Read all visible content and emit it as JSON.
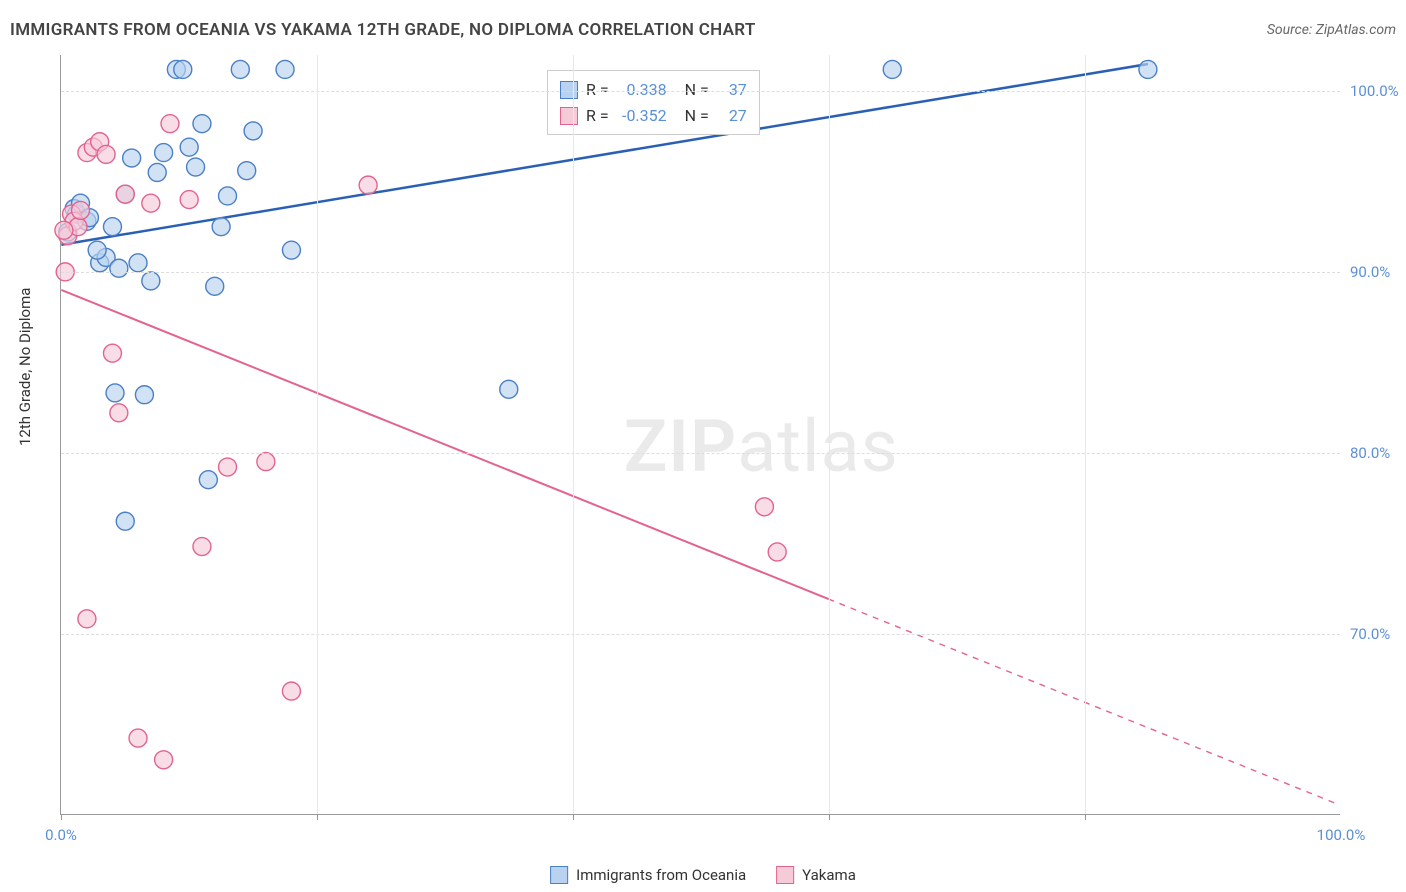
{
  "title": "IMMIGRANTS FROM OCEANIA VS YAKAMA 12TH GRADE, NO DIPLOMA CORRELATION CHART",
  "source": "Source: ZipAtlas.com",
  "watermark": {
    "zip": "ZIP",
    "atlas": "atlas"
  },
  "y_axis_label": "12th Grade, No Diploma",
  "chart": {
    "type": "scatter",
    "background_color": "#ffffff",
    "grid_color": "#dddddd",
    "xlim": [
      0,
      100
    ],
    "ylim": [
      60,
      102
    ],
    "y_ticks": [
      {
        "value": 70,
        "label": "70.0%"
      },
      {
        "value": 80,
        "label": "80.0%"
      },
      {
        "value": 90,
        "label": "90.0%"
      },
      {
        "value": 100,
        "label": "100.0%"
      }
    ],
    "x_tick_marks": [
      0,
      20,
      40,
      60,
      80
    ],
    "x_ticks": [
      {
        "value": 0,
        "label": "0.0%"
      },
      {
        "value": 100,
        "label": "100.0%"
      }
    ],
    "legend_stats": {
      "top_pct": 2,
      "left_pct": 38,
      "rows": [
        {
          "swatch_fill": "#b9d2ef",
          "swatch_border": "#4b7fc6",
          "r_label": "R =",
          "r_value": "0.338",
          "n_label": "N =",
          "n_value": "37"
        },
        {
          "swatch_fill": "#f6cbd8",
          "swatch_border": "#e3638f",
          "r_label": "R =",
          "r_value": "-0.352",
          "n_label": "N =",
          "n_value": "27"
        }
      ]
    },
    "legend_bottom": [
      {
        "swatch_fill": "#b9d2ef",
        "swatch_border": "#4b7fc6",
        "label": "Immigrants from Oceania"
      },
      {
        "swatch_fill": "#f6cbd8",
        "swatch_border": "#e3638f",
        "label": "Yakama"
      }
    ],
    "series": [
      {
        "name": "Immigrants from Oceania",
        "marker_fill": "#b9d2ef",
        "marker_fill_opacity": 0.65,
        "marker_border": "#4b7fc6",
        "marker_radius": 9,
        "line_color": "#2a60b4",
        "line_width": 2.5,
        "regression": {
          "x1": 0,
          "y1": 91.5,
          "x2": 85,
          "y2": 101.5,
          "solid_until": 85
        },
        "points": [
          {
            "x": 0.5,
            "y": 92.2
          },
          {
            "x": 1,
            "y": 93.5
          },
          {
            "x": 1.2,
            "y": 93.2
          },
          {
            "x": 1.5,
            "y": 93.8
          },
          {
            "x": 2,
            "y": 92.8
          },
          {
            "x": 2.2,
            "y": 93.0
          },
          {
            "x": 3,
            "y": 90.5
          },
          {
            "x": 3.5,
            "y": 90.8
          },
          {
            "x": 4,
            "y": 92.5
          },
          {
            "x": 4.5,
            "y": 90.2
          },
          {
            "x": 5,
            "y": 94.3
          },
          {
            "x": 5.5,
            "y": 96.3
          },
          {
            "x": 6,
            "y": 90.5
          },
          {
            "x": 6.5,
            "y": 83.2
          },
          {
            "x": 7,
            "y": 89.5
          },
          {
            "x": 7.5,
            "y": 95.5
          },
          {
            "x": 8,
            "y": 96.6
          },
          {
            "x": 9,
            "y": 101.2
          },
          {
            "x": 9.5,
            "y": 101.2
          },
          {
            "x": 10,
            "y": 96.9
          },
          {
            "x": 10.5,
            "y": 95.8
          },
          {
            "x": 11,
            "y": 98.2
          },
          {
            "x": 11.5,
            "y": 78.5
          },
          {
            "x": 12,
            "y": 89.2
          },
          {
            "x": 12.5,
            "y": 92.5
          },
          {
            "x": 13,
            "y": 94.2
          },
          {
            "x": 14,
            "y": 101.2
          },
          {
            "x": 14.5,
            "y": 95.6
          },
          {
            "x": 15,
            "y": 97.8
          },
          {
            "x": 17.5,
            "y": 101.2
          },
          {
            "x": 18,
            "y": 91.2
          },
          {
            "x": 5,
            "y": 76.2
          },
          {
            "x": 35,
            "y": 83.5
          },
          {
            "x": 65,
            "y": 101.2
          },
          {
            "x": 85,
            "y": 101.2
          },
          {
            "x": 4.2,
            "y": 83.3
          },
          {
            "x": 2.8,
            "y": 91.2
          }
        ]
      },
      {
        "name": "Yakama",
        "marker_fill": "#f6cbd8",
        "marker_fill_opacity": 0.65,
        "marker_border": "#e3638f",
        "marker_radius": 9,
        "line_color": "#e3638f",
        "line_width": 2,
        "regression": {
          "x1": 0,
          "y1": 89,
          "x2": 100,
          "y2": 60.5,
          "solid_until": 60
        },
        "points": [
          {
            "x": 0.3,
            "y": 90.0
          },
          {
            "x": 0.5,
            "y": 92.0
          },
          {
            "x": 0.8,
            "y": 93.2
          },
          {
            "x": 1,
            "y": 92.8
          },
          {
            "x": 1.3,
            "y": 92.5
          },
          {
            "x": 1.5,
            "y": 93.4
          },
          {
            "x": 2,
            "y": 96.6
          },
          {
            "x": 2.5,
            "y": 96.9
          },
          {
            "x": 3,
            "y": 97.2
          },
          {
            "x": 3.5,
            "y": 96.5
          },
          {
            "x": 4,
            "y": 85.5
          },
          {
            "x": 4.5,
            "y": 82.2
          },
          {
            "x": 2,
            "y": 70.8
          },
          {
            "x": 5,
            "y": 94.3
          },
          {
            "x": 6,
            "y": 64.2
          },
          {
            "x": 7,
            "y": 93.8
          },
          {
            "x": 8,
            "y": 63.0
          },
          {
            "x": 8.5,
            "y": 98.2
          },
          {
            "x": 10,
            "y": 94.0
          },
          {
            "x": 11,
            "y": 74.8
          },
          {
            "x": 13,
            "y": 79.2
          },
          {
            "x": 16,
            "y": 79.5
          },
          {
            "x": 18,
            "y": 66.8
          },
          {
            "x": 24,
            "y": 94.8
          },
          {
            "x": 55,
            "y": 77.0
          },
          {
            "x": 56,
            "y": 74.5
          },
          {
            "x": 0.2,
            "y": 92.3
          }
        ]
      }
    ]
  }
}
